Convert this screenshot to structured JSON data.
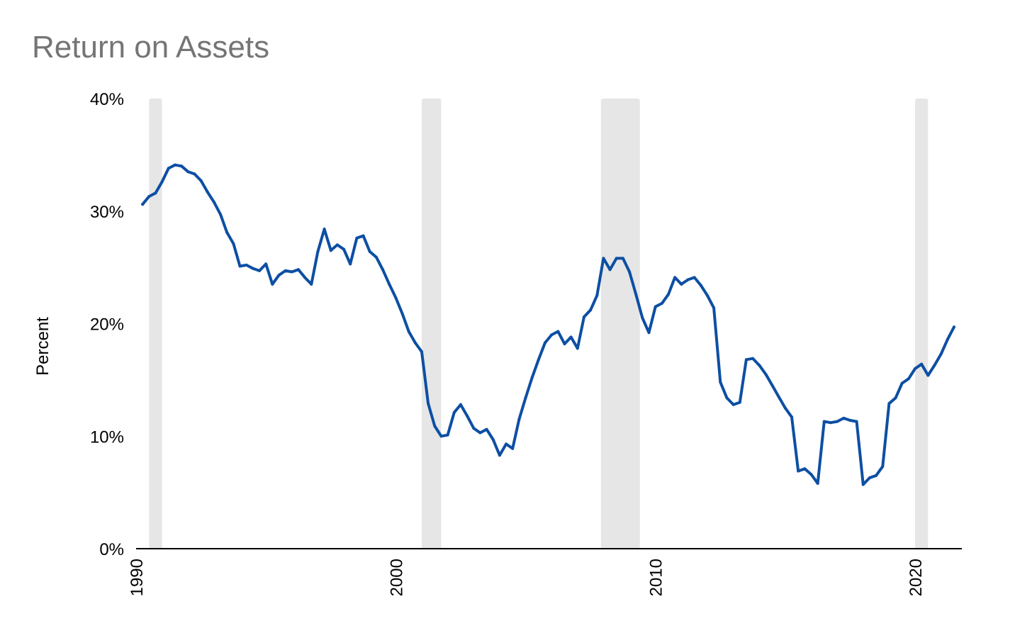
{
  "chart_data": {
    "type": "line",
    "title": "Return on Assets",
    "xlabel": "",
    "ylabel": "Percent",
    "xlim": [
      1990.0,
      2021.8
    ],
    "ylim": [
      0,
      40
    ],
    "x_ticks": [
      1990,
      2000,
      2010,
      2020
    ],
    "x_tick_labels": [
      "1990",
      "2000",
      "2010",
      "2020"
    ],
    "y_ticks": [
      0,
      10,
      20,
      30,
      40
    ],
    "y_tick_labels": [
      "0%",
      "10%",
      "20%",
      "30%",
      "40%"
    ],
    "grid": false,
    "legend": "none",
    "line_color": "#0D4FA3",
    "recession_color": "#E6E6E6",
    "recession_periods": [
      [
        1990.5,
        1991.0
      ],
      [
        2001.0,
        2001.75
      ],
      [
        2007.9,
        2009.4
      ],
      [
        2020.0,
        2020.5
      ]
    ],
    "series": [
      {
        "x": [
          1990.25,
          1990.5,
          1990.75,
          1991.0,
          1991.25,
          1991.5,
          1991.75,
          1992.0,
          1992.25,
          1992.5,
          1992.75,
          1993.0,
          1993.25,
          1993.5,
          1993.75,
          1994.0,
          1994.25,
          1994.5,
          1994.75,
          1995.0,
          1995.25,
          1995.5,
          1995.75,
          1996.0,
          1996.25,
          1996.5,
          1996.75,
          1997.0,
          1997.25,
          1997.5,
          1997.75,
          1998.0,
          1998.25,
          1998.5,
          1998.75,
          1999.0,
          1999.25,
          1999.5,
          1999.75,
          2000.0,
          2000.25,
          2000.5,
          2000.75,
          2001.0,
          2001.25,
          2001.5,
          2001.75,
          2002.0,
          2002.25,
          2002.5,
          2002.75,
          2003.0,
          2003.25,
          2003.5,
          2003.75,
          2004.0,
          2004.25,
          2004.5,
          2004.75,
          2005.0,
          2005.25,
          2005.5,
          2005.75,
          2006.0,
          2006.25,
          2006.5,
          2006.75,
          2007.0,
          2007.25,
          2007.5,
          2007.75,
          2008.0,
          2008.25,
          2008.5,
          2008.75,
          2009.0,
          2009.25,
          2009.5,
          2009.75,
          2010.0,
          2010.25,
          2010.5,
          2010.75,
          2011.0,
          2011.25,
          2011.5,
          2011.75,
          2012.0,
          2012.25,
          2012.5,
          2012.75,
          2013.0,
          2013.25,
          2013.5,
          2013.75,
          2014.0,
          2014.25,
          2014.5,
          2014.75,
          2015.0,
          2015.25,
          2015.5,
          2015.75,
          2016.0,
          2016.25,
          2016.5,
          2016.75,
          2017.0,
          2017.25,
          2017.5,
          2017.75,
          2018.0,
          2018.25,
          2018.5,
          2018.75,
          2019.0,
          2019.25,
          2019.5,
          2019.75,
          2020.0,
          2020.25,
          2020.5,
          2020.75,
          2021.0,
          2021.25,
          2021.5
        ],
        "y": [
          30.6,
          31.3,
          31.6,
          32.6,
          33.8,
          34.1,
          34.0,
          33.5,
          33.3,
          32.7,
          31.7,
          30.8,
          29.7,
          28.1,
          27.1,
          25.1,
          25.2,
          24.9,
          24.7,
          25.3,
          23.5,
          24.3,
          24.7,
          24.6,
          24.8,
          24.1,
          23.5,
          26.4,
          28.4,
          26.5,
          27.0,
          26.6,
          25.3,
          27.6,
          27.8,
          26.4,
          25.9,
          24.8,
          23.5,
          22.3,
          20.9,
          19.3,
          18.3,
          17.5,
          12.9,
          10.9,
          10.0,
          10.1,
          12.1,
          12.8,
          11.8,
          10.7,
          10.3,
          10.6,
          9.7,
          8.3,
          9.3,
          8.9,
          11.5,
          13.4,
          15.2,
          16.8,
          18.3,
          19.0,
          19.3,
          18.2,
          18.8,
          17.8,
          20.6,
          21.2,
          22.5,
          25.8,
          24.8,
          25.8,
          25.8,
          24.6,
          22.6,
          20.5,
          19.2,
          21.5,
          21.8,
          22.6,
          24.1,
          23.5,
          23.9,
          24.1,
          23.4,
          22.5,
          21.4,
          14.8,
          13.4,
          12.8,
          13.0,
          16.8,
          16.9,
          16.3,
          15.5,
          14.5,
          13.5,
          12.5,
          11.7,
          6.9,
          7.1,
          6.6,
          5.8,
          11.3,
          11.2,
          11.3,
          11.6,
          11.4,
          11.3,
          5.7,
          6.3,
          6.5,
          7.3,
          12.9,
          13.4,
          14.7,
          15.1,
          16.0,
          16.4,
          15.4,
          16.3,
          17.3,
          18.6,
          19.7
        ]
      }
    ]
  }
}
